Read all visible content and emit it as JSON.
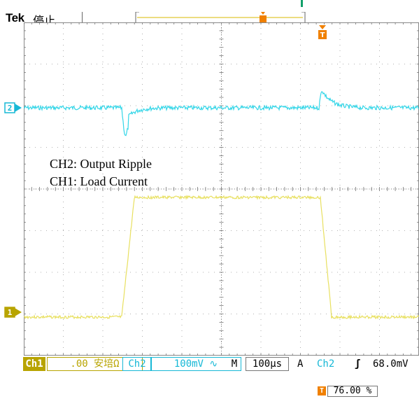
{
  "header": {
    "logo": "Tek",
    "run_state": "停止"
  },
  "markers": {
    "ch2": "2",
    "ch1": "1",
    "trigger_tag": "T"
  },
  "annotations": {
    "ch2": "CH2: Output Ripple",
    "ch1": "CH1: Load Current"
  },
  "status_bar": {
    "ch1_tag": "Ch1",
    "ch1_scale": ".00 安培Ω",
    "ch2_tag": "Ch2",
    "ch2_scale": "100mV ∿",
    "m_label": "M",
    "timebase": "100µs",
    "a_label": "A",
    "trigger_source": "Ch2",
    "trigger_slope": "ʃ",
    "trigger_level": "68.0mV"
  },
  "bottom": {
    "trigger_position": "76.00 %"
  },
  "colors": {
    "ch1": "#e8e060",
    "ch2": "#33d6e8",
    "trigger": "#f08000",
    "grid": "#888888"
  }
}
